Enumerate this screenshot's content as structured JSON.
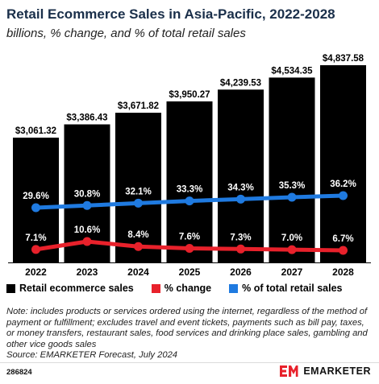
{
  "header": {
    "title": "Retail Ecommerce Sales in Asia-Pacific, 2022-2028",
    "subtitle": "billions, % change, and % of total retail sales"
  },
  "chart_data": {
    "type": "bar",
    "categories": [
      "2022",
      "2023",
      "2024",
      "2025",
      "2026",
      "2027",
      "2028"
    ],
    "series": [
      {
        "name": "Retail ecommerce sales",
        "type": "bar",
        "color": "#000000",
        "values": [
          3061.32,
          3386.43,
          3671.82,
          3950.27,
          4239.53,
          4534.35,
          4837.58
        ],
        "labels": [
          "$3,061.32",
          "$3,386.43",
          "$3,671.82",
          "$3,950.27",
          "$4,239.53",
          "$4,534.35",
          "$4,837.58"
        ]
      },
      {
        "name": "% change",
        "type": "line",
        "color": "#e8212b",
        "values": [
          7.1,
          10.6,
          8.4,
          7.6,
          7.3,
          7.0,
          6.7
        ],
        "labels": [
          "7.1%",
          "10.6%",
          "8.4%",
          "7.6%",
          "7.3%",
          "7.0%",
          "6.7%"
        ]
      },
      {
        "name": "% of total retail sales",
        "type": "line",
        "color": "#1f7ae0",
        "values": [
          29.6,
          30.8,
          32.1,
          33.3,
          34.3,
          35.3,
          36.2
        ],
        "labels": [
          "29.6%",
          "30.8%",
          "32.1%",
          "33.3%",
          "34.3%",
          "35.3%",
          "36.2%"
        ]
      }
    ],
    "legend_position": "bottom"
  },
  "footer": {
    "note": "Note: includes products or services ordered using the internet, regardless of the method of payment or fulfillment; excludes travel and event tickets, payments such as bill pay, taxes, or money transfers, restaurant sales, food services and drinking place sales, gambling and other vice goods sales",
    "source": "Source: EMARKETER Forecast, July 2024",
    "chart_id": "286824",
    "brand": "EMARKETER"
  }
}
